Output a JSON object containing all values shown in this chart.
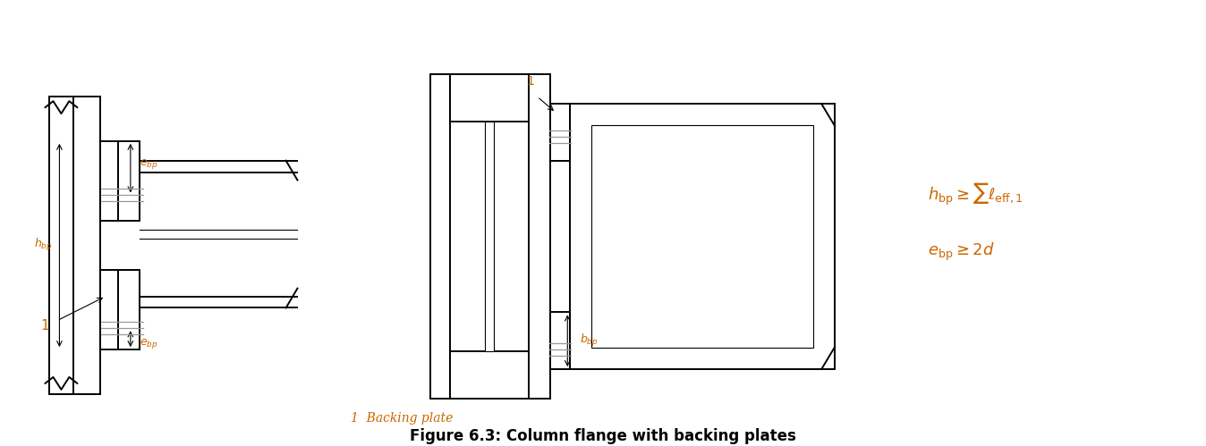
{
  "title": "Figure 6.3: Column flange with backing plates",
  "caption": "1  Backing plate",
  "label_color_orange": "#CC6600",
  "bg_color": "#ffffff",
  "lw": 1.4,
  "lw_thin": 0.8
}
